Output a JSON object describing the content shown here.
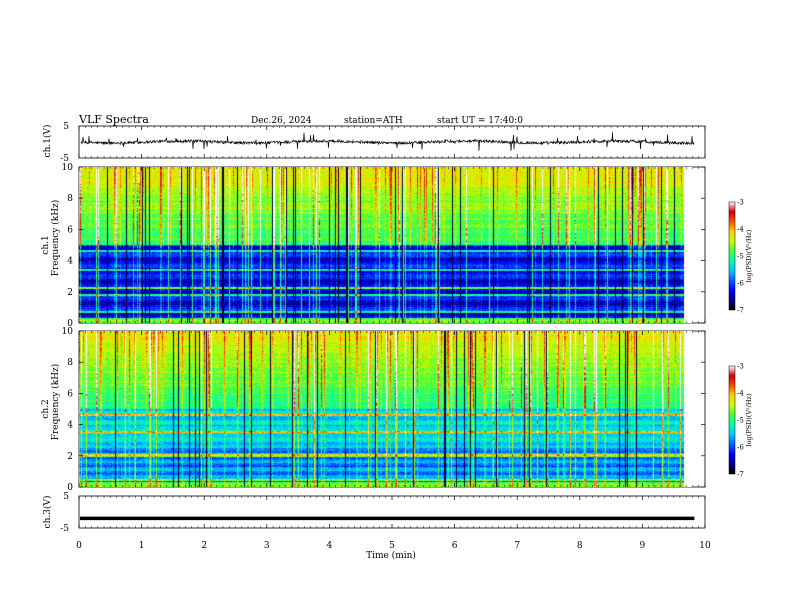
{
  "header": {
    "title": "VLF  Spectra",
    "date": "Dec.26, 2024",
    "station": "station=ATH",
    "start": "start  UT  =   17:40:0"
  },
  "chart_data": [
    {
      "type": "line",
      "name": "ch1-waveform",
      "ylabel": "ch.1(V)",
      "ylim": [
        -5,
        5
      ],
      "y_ticks": [
        "5",
        "-5"
      ],
      "xlim": [
        0,
        10
      ],
      "x_end": 9.83,
      "baseline_v": 0,
      "spike_amplitude_v": 3,
      "color": "#000000"
    },
    {
      "type": "heatmap",
      "name": "ch1-spectrogram",
      "ylabel_channel": "ch.1",
      "ylabel": "Frequency  (kHz)",
      "ylim": [
        0,
        10
      ],
      "y_ticks": [
        "0",
        "2",
        "4",
        "6",
        "8",
        "10"
      ],
      "xlim": [
        0,
        10
      ],
      "x_end": 9.83,
      "colorbar": {
        "label": "log(PSD)(V²/Hz)",
        "range": [
          -7,
          -3
        ],
        "ticks": [
          "-3",
          "-4",
          "-5",
          "-6",
          "-7"
        ]
      },
      "features": {
        "quiet_band_khz": [
          0.3,
          5.0
        ],
        "active_band_khz": [
          5.0,
          10.0
        ],
        "sferic_lines": "dense vertical impulses across full band",
        "horizontal_lines_khz": [
          0.7,
          1.8,
          2.2,
          3.4,
          4.6
        ]
      }
    },
    {
      "type": "heatmap",
      "name": "ch2-spectrogram",
      "ylabel_channel": "ch.2",
      "ylabel": "Frequency  (kHz)",
      "ylim": [
        0,
        10
      ],
      "y_ticks": [
        "0",
        "2",
        "4",
        "6",
        "8",
        "10"
      ],
      "xlim": [
        0,
        10
      ],
      "x_end": 9.83,
      "colorbar": {
        "label": "log(PSD)(V²/Hz)",
        "range": [
          -7,
          -3
        ],
        "ticks": [
          "-3",
          "-4",
          "-5",
          "-6",
          "-7"
        ]
      },
      "features": {
        "active_band_khz": [
          5.0,
          10.0
        ],
        "horizontal_lines_khz": [
          0.4,
          2.0,
          3.5,
          4.6
        ],
        "sferic_lines": "dense vertical impulses across full band"
      }
    },
    {
      "type": "line",
      "name": "ch3-waveform",
      "ylabel": "ch.3(V)",
      "ylim": [
        -5,
        5
      ],
      "y_ticks": [
        "5",
        "-5"
      ],
      "xlim": [
        0,
        10
      ],
      "x_end": 9.83,
      "baseline_v": -2,
      "color": "#000000"
    }
  ],
  "x_axis": {
    "label": "Time  (min)",
    "ticks": [
      "0",
      "1",
      "2",
      "3",
      "4",
      "5",
      "6",
      "7",
      "8",
      "9",
      "10"
    ]
  },
  "colorscale": [
    "#000000",
    "#00008b",
    "#0000ff",
    "#0060ff",
    "#00c8ff",
    "#00ffb0",
    "#40ff40",
    "#c8ff00",
    "#ffd000",
    "#ff5000",
    "#d00000",
    "#ffffff"
  ]
}
